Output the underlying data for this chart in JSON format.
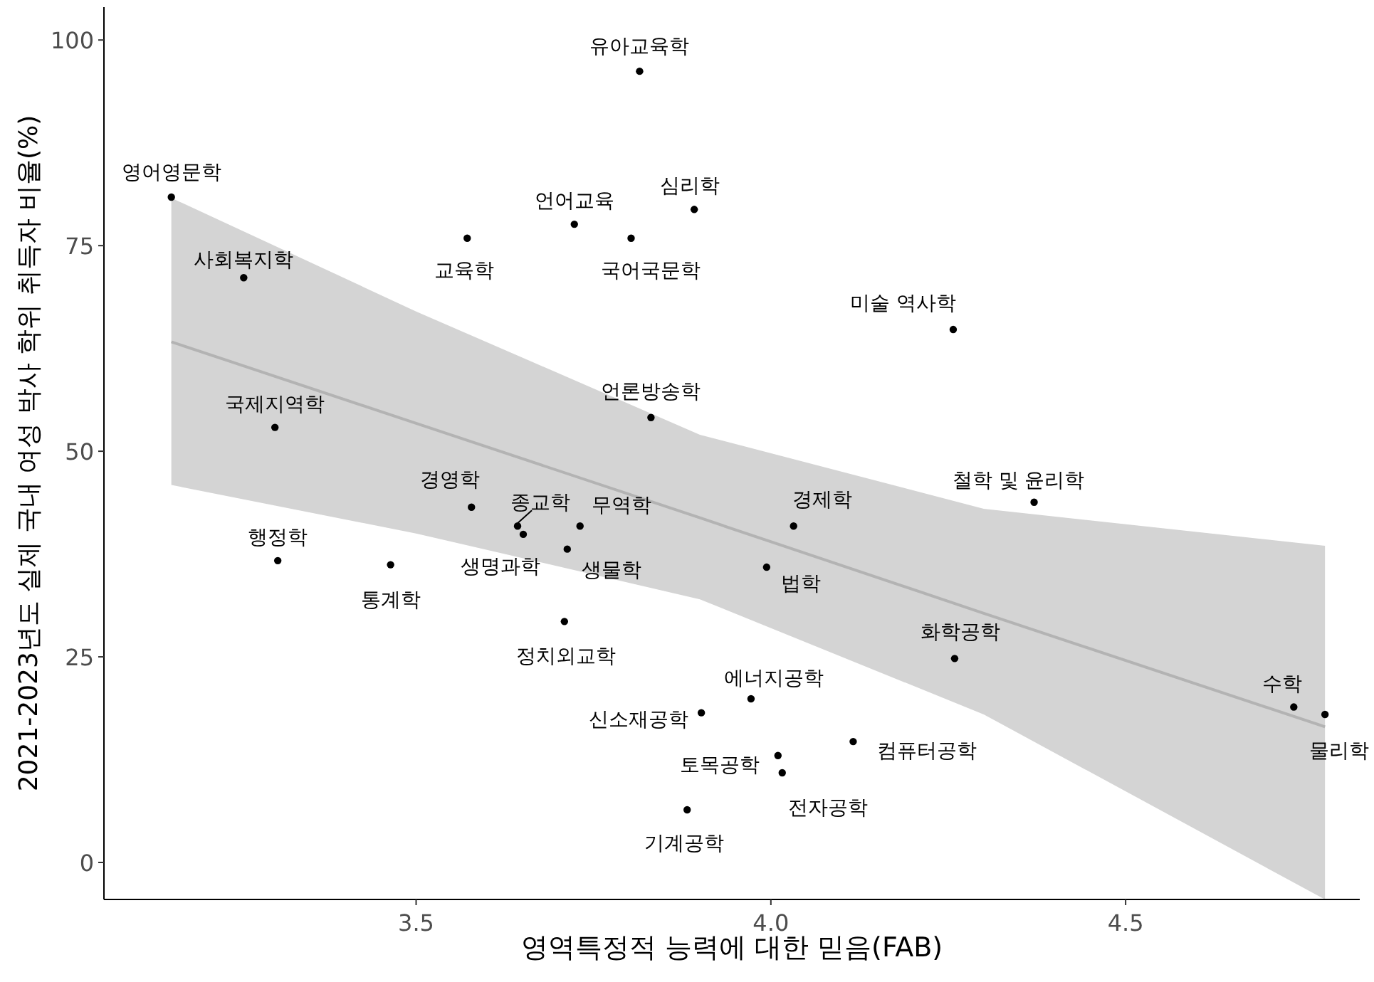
{
  "chart_data": {
    "type": "scatter",
    "xlabel": "영역특정적 능력에 대한 믿음(FAB)",
    "ylabel": "2021-2023년도 실제 국내 여성 박사 학위 취득자 비율(%)",
    "xlim": [
      3.06,
      4.83
    ],
    "ylim": [
      -4.5,
      104
    ],
    "xticks": [
      3.5,
      {
        "value": 4,
        "label": "4.0"
      },
      4.5
    ],
    "yticks": [
      0,
      25,
      50,
      75,
      100
    ],
    "grid": false,
    "series": [
      {
        "type": "line",
        "color": "#b3b3b3",
        "x": [
          3.155,
          3.5,
          3.9,
          4.3,
          4.781
        ],
        "values": [
          63.3,
          53.4,
          41.9,
          30.3,
          16.5
        ],
        "lower": [
          45.9,
          40,
          32,
          18,
          -4.5
        ],
        "upper": [
          80.8,
          67,
          52,
          43,
          38.5
        ]
      },
      {
        "color": "#000000",
        "marker": "circle",
        "x": [
          3.155,
          3.257,
          3.301,
          3.305,
          3.464,
          3.572,
          3.578,
          3.643,
          3.651,
          3.723,
          3.713,
          3.731,
          3.709,
          3.815,
          3.803,
          3.892,
          3.831,
          3.882,
          3.902,
          3.972,
          3.994,
          4.032,
          4.01,
          4.016,
          4.116,
          4.257,
          4.259,
          4.371,
          4.737,
          4.781
        ],
        "values": [
          80.9,
          71.1,
          52.9,
          36.7,
          36.2,
          75.9,
          43.2,
          40.9,
          39.9,
          77.6,
          38.1,
          40.9,
          29.3,
          96.2,
          75.9,
          79.4,
          54.1,
          6.4,
          18.2,
          19.9,
          35.9,
          40.9,
          13.0,
          10.9,
          14.7,
          64.8,
          24.8,
          43.8,
          18.9,
          18.0
        ],
        "value_labels": [
          "영어영문학",
          "사회복지학",
          "국제지역학",
          "행정학",
          "통계학",
          "교육학",
          "경영학",
          "종교학",
          "생명과학",
          "언어교육",
          "생물학",
          "무역학",
          "정치외교학",
          "유아교육학",
          "국어국문학",
          "심리학",
          "언론방송학",
          "기계공학",
          "신소재공학",
          "에너지공학",
          "법학",
          "경제학",
          "토목공학",
          "전자공학",
          "컴퓨터공학",
          "미술 역사학",
          "화학공학",
          "철학 및 윤리학",
          "수학",
          "물리학"
        ]
      }
    ]
  }
}
